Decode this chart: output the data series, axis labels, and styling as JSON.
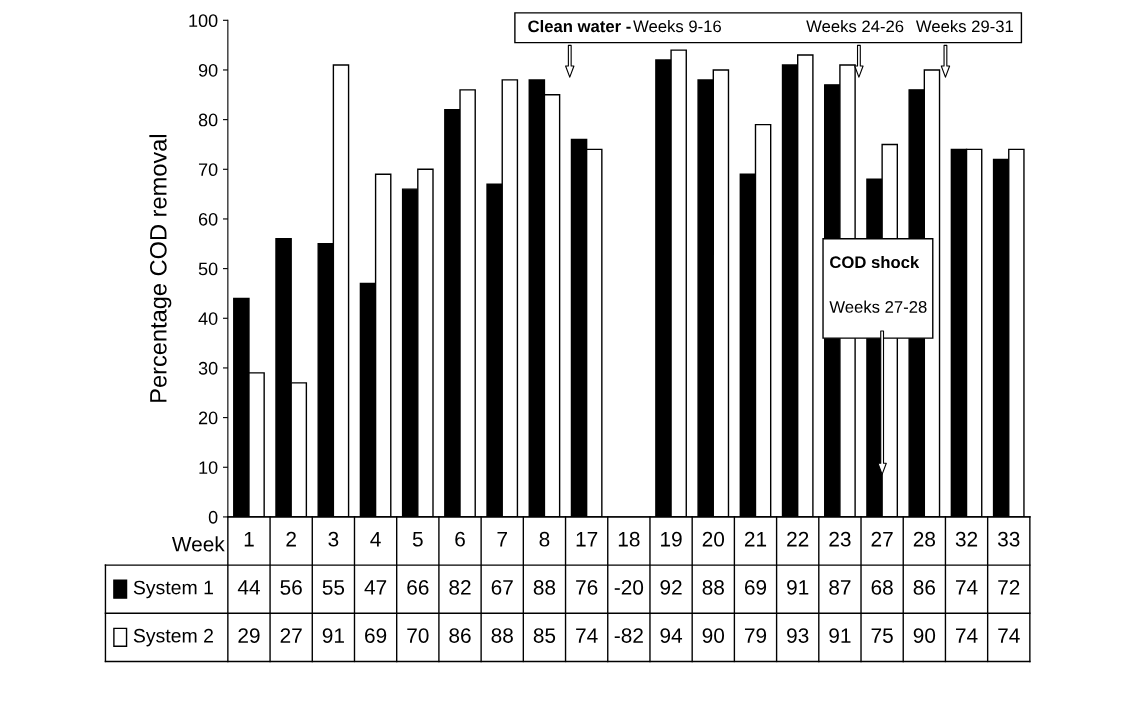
{
  "chart_data": {
    "type": "bar",
    "ylabel": "Percentage COD removal",
    "xlabel": "Week",
    "categories": [
      "1",
      "2",
      "3",
      "4",
      "5",
      "6",
      "7",
      "8",
      "17",
      "18",
      "19",
      "20",
      "21",
      "22",
      "23",
      "27",
      "28",
      "32",
      "33"
    ],
    "series": [
      {
        "name": "System 1",
        "color": "#000000",
        "values": [
          44,
          56,
          55,
          47,
          66,
          82,
          67,
          88,
          76,
          null,
          92,
          88,
          69,
          91,
          87,
          68,
          86,
          74,
          72
        ],
        "value_labels": [
          "44",
          "56",
          "55",
          "47",
          "66",
          "82",
          "67",
          "88",
          "76",
          "-20",
          "92",
          "88",
          "69",
          "91",
          "87",
          "68",
          "86",
          "74",
          "72"
        ]
      },
      {
        "name": "System 2",
        "color": "#ffffff",
        "values": [
          29,
          27,
          91,
          69,
          70,
          86,
          88,
          85,
          74,
          null,
          94,
          90,
          79,
          93,
          91,
          75,
          90,
          74,
          74
        ],
        "value_labels": [
          "29",
          "27",
          "91",
          "69",
          "70",
          "86",
          "88",
          "85",
          "74",
          "-82",
          "94",
          "90",
          "79",
          "93",
          "91",
          "75",
          "90",
          "74",
          "74"
        ]
      }
    ],
    "ylim": [
      0,
      100
    ],
    "yticks": [
      0,
      10,
      20,
      30,
      40,
      50,
      60,
      70,
      80,
      90,
      100
    ],
    "grid": false,
    "legend": "bottom left",
    "annotations": [
      "Clean water -",
      "Weeks 9-16",
      "Weeks 24-26",
      "Weeks 29-31",
      "COD shock",
      "Weeks 27-28"
    ]
  }
}
